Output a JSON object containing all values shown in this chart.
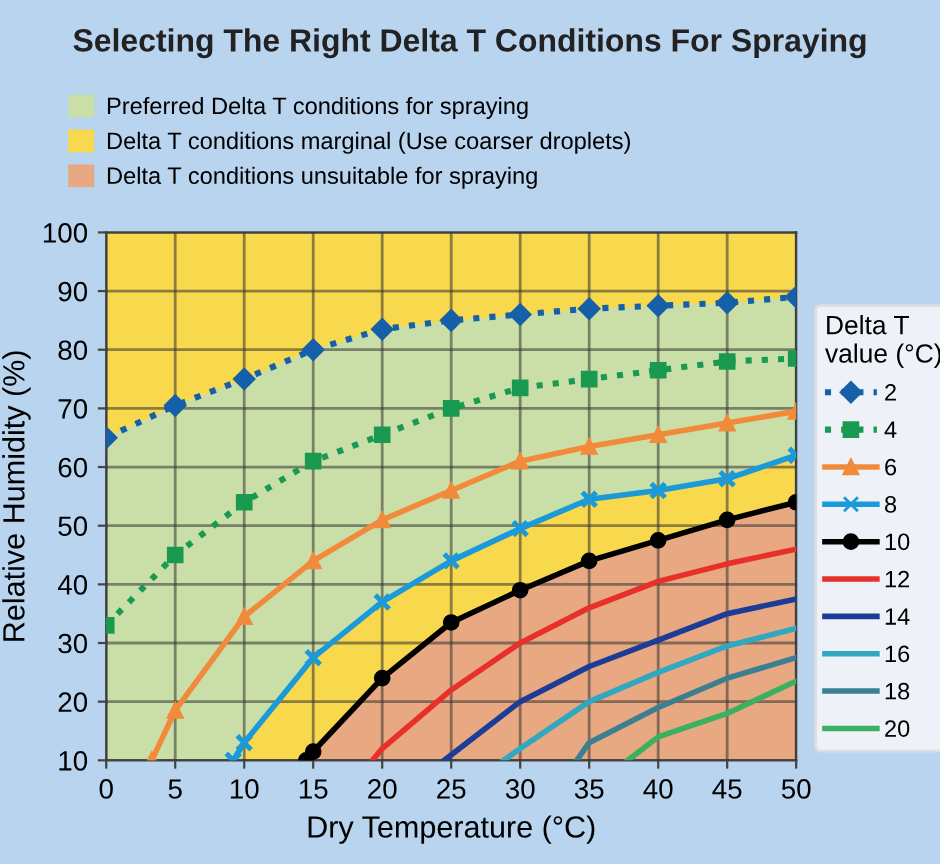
{
  "chart_data": {
    "type": "line",
    "title": "Selecting The Right Delta T Conditions For Spraying",
    "xlabel": "Dry Temperature (°C)",
    "ylabel": "Relative Humidity (%)",
    "legend_title": "Delta T\nvalue (°C)",
    "xlim": [
      0,
      50
    ],
    "ylim": [
      10,
      100
    ],
    "xticks": [
      0,
      5,
      10,
      15,
      20,
      25,
      30,
      35,
      40,
      45,
      50
    ],
    "yticks": [
      10,
      20,
      30,
      40,
      50,
      60,
      70,
      80,
      90,
      100
    ],
    "grid": true,
    "legend": "right",
    "series": [
      {
        "name": "2",
        "color": "#1560a8",
        "marker": "diamond",
        "line_style": "dotted",
        "x": [
          0,
          5,
          10,
          15,
          20,
          25,
          30,
          35,
          40,
          45,
          50
        ],
        "values": [
          65,
          70.5,
          75,
          80,
          83.5,
          85,
          86,
          87,
          87.5,
          88,
          89
        ]
      },
      {
        "name": "4",
        "color": "#1a9a50",
        "marker": "square",
        "line_style": "dotted",
        "x": [
          0,
          5,
          10,
          15,
          20,
          25,
          30,
          35,
          40,
          45,
          50
        ],
        "values": [
          33,
          45,
          54,
          61,
          65.5,
          70,
          73.5,
          75,
          76.5,
          78,
          78.5
        ]
      },
      {
        "name": "6",
        "color": "#f28a3c",
        "marker": "triangle",
        "line_style": "solid",
        "x": [
          3.3,
          5,
          10,
          15,
          20,
          25,
          30,
          35,
          40,
          45,
          50
        ],
        "values": [
          10,
          18.5,
          34.5,
          44,
          51,
          56,
          61,
          63.5,
          65.5,
          67.5,
          69.5
        ]
      },
      {
        "name": "8",
        "color": "#1a9ad8",
        "marker": "cross",
        "line_style": "solid",
        "x": [
          9.2,
          10,
          15,
          20,
          25,
          30,
          35,
          40,
          45,
          50
        ],
        "values": [
          10,
          13,
          27.5,
          37,
          44,
          49.5,
          54.5,
          56,
          58,
          62
        ]
      },
      {
        "name": "10",
        "color": "#000000",
        "marker": "circle",
        "line_style": "solid",
        "x": [
          14.5,
          15,
          20,
          25,
          30,
          35,
          40,
          45,
          50
        ],
        "values": [
          10,
          11.5,
          24,
          33.5,
          39,
          44,
          47.5,
          51,
          54
        ]
      },
      {
        "name": "12",
        "color": "#e8302a",
        "marker": "none",
        "line_style": "solid",
        "x": [
          19.3,
          20,
          25,
          30,
          35,
          40,
          45,
          50
        ],
        "values": [
          10,
          12,
          22,
          30,
          36,
          40.5,
          43.5,
          46
        ]
      },
      {
        "name": "14",
        "color": "#1c3c98",
        "marker": "none",
        "line_style": "solid",
        "x": [
          24.5,
          30,
          35,
          40,
          45,
          50
        ],
        "values": [
          10,
          20,
          26,
          30.5,
          35,
          37.5
        ]
      },
      {
        "name": "16",
        "color": "#30a8c0",
        "marker": "none",
        "line_style": "solid",
        "x": [
          28.8,
          30,
          35,
          40,
          45,
          50
        ],
        "values": [
          10,
          12,
          20,
          25,
          29.5,
          32.5
        ]
      },
      {
        "name": "18",
        "color": "#3a8090",
        "marker": "none",
        "line_style": "solid",
        "x": [
          34.1,
          35,
          40,
          45,
          50
        ],
        "values": [
          10,
          13,
          19,
          24,
          27.5
        ]
      },
      {
        "name": "20",
        "color": "#3ab060",
        "marker": "none",
        "line_style": "solid",
        "x": [
          37.8,
          40,
          45,
          50
        ],
        "values": [
          10,
          14,
          18,
          23.5
        ]
      },
      {
        "type": "area",
        "name": "Delta T conditions marginal (Use coarser droplets)",
        "color": "#f8d84c",
        "x": [
          0,
          50
        ],
        "values": [
          100,
          100
        ]
      },
      {
        "type": "area",
        "name": "Preferred Delta T conditions for spraying",
        "color": "#cadfa8",
        "x": [
          0,
          5,
          9.2,
          10,
          15,
          20,
          25,
          30,
          35,
          40,
          45,
          50
        ],
        "values": [
          65,
          70.5,
          74.2,
          75,
          80,
          83.5,
          85,
          86,
          87,
          87.5,
          88,
          89
        ]
      },
      {
        "type": "area",
        "color": "#f8d84c",
        "x": [
          10,
          15,
          20,
          25,
          30,
          35,
          40,
          45,
          50
        ],
        "values": [
          13,
          27.5,
          37,
          44,
          49.5,
          54.5,
          56,
          58,
          62
        ]
      },
      {
        "type": "area",
        "name": "Delta T conditions unsuitable for spraying",
        "color": "#e8a882",
        "x": [
          15,
          20,
          25,
          30,
          35,
          40,
          45,
          50
        ],
        "values": [
          11.5,
          24,
          33.5,
          39,
          44,
          47.5,
          51,
          54
        ]
      }
    ]
  }
}
